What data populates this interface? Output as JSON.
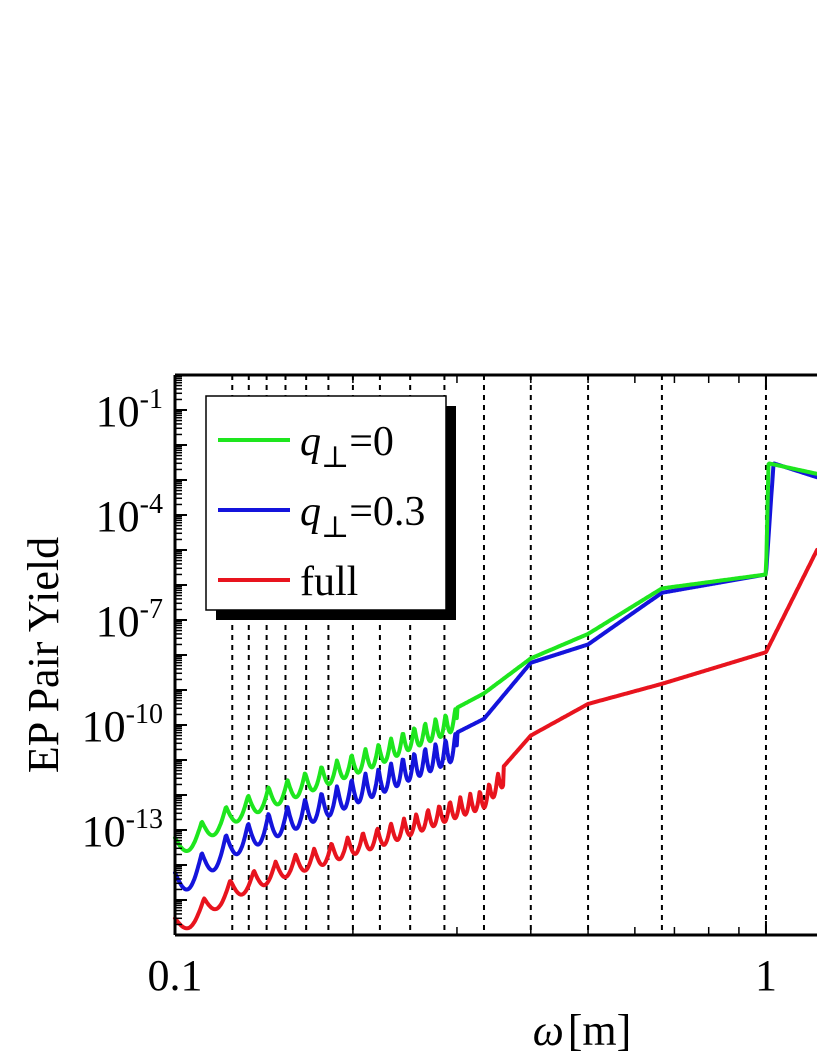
{
  "chart_data": {
    "type": "line",
    "title": "",
    "xlabel_symbol": "ω",
    "xlabel_unit": "[m]",
    "ylabel": "EP Pair Yield",
    "x_scale": "log",
    "y_scale": "log",
    "xlim": [
      0.1,
      1.22
    ],
    "ylim": [
      1e-16,
      1
    ],
    "x_ticks": [
      {
        "value": 0.1,
        "label": "0.1"
      },
      {
        "value": 1,
        "label": "1"
      }
    ],
    "y_ticks": [
      {
        "value": 0.1,
        "base": "10",
        "exp": "-1"
      },
      {
        "value": 0.0001,
        "base": "10",
        "exp": "-4"
      },
      {
        "value": 1e-07,
        "base": "10",
        "exp": "-7"
      },
      {
        "value": 1e-10,
        "base": "10",
        "exp": "-10"
      },
      {
        "value": 1e-13,
        "base": "10",
        "exp": "-13"
      }
    ],
    "threshold_lines": [
      0.125,
      0.1333,
      0.1429,
      0.1538,
      0.1667,
      0.1818,
      0.2,
      0.2222,
      0.25,
      0.2857,
      0.3333,
      0.4,
      0.5,
      0.6667,
      1.0
    ],
    "legend_position": "top-left",
    "series": [
      {
        "name": "full",
        "legend_var": "",
        "legend_sub": "",
        "legend_value": "full",
        "color": "#e8141e",
        "base_points": [
          [
            0.1,
            3e-16
          ],
          [
            0.125,
            4e-15
          ],
          [
            0.1333,
            6e-15
          ],
          [
            0.1429,
            1e-14
          ],
          [
            0.1538,
            1.6e-14
          ],
          [
            0.1667,
            2.5e-14
          ],
          [
            0.1818,
            4e-14
          ],
          [
            0.2,
            7e-14
          ],
          [
            0.2222,
            1.2e-13
          ],
          [
            0.25,
            2.5e-13
          ],
          [
            0.2857,
            6e-13
          ],
          [
            0.3333,
            1.5e-12
          ],
          [
            0.4,
            5e-11
          ],
          [
            0.5,
            4e-10
          ],
          [
            0.6667,
            1.5e-09
          ],
          [
            1.0,
            1.2e-08
          ],
          [
            1.22,
            1e-05
          ]
        ],
        "resonances": [
          {
            "at": 0.125,
            "dip": 0,
            "jump": 0
          },
          {
            "at": 0.1333,
            "dip": 0,
            "jump": 0
          },
          {
            "at": 0.1429,
            "dip": 0,
            "jump": 0
          },
          {
            "at": 0.1538,
            "dip": 0,
            "jump": 0
          },
          {
            "at": 0.1667,
            "dip": 0,
            "jump": 0
          },
          {
            "at": 0.1818,
            "dip": 0,
            "jump": 0
          },
          {
            "at": 0.2,
            "dip": 0,
            "jump": 0
          },
          {
            "at": 0.2222,
            "dip": 0,
            "jump": 0
          },
          {
            "at": 0.25,
            "dip": 0,
            "jump": 0
          },
          {
            "at": 0.2857,
            "dip": 0,
            "jump": 0
          },
          {
            "at": 0.3333,
            "dip": 0,
            "jump": 0
          },
          {
            "at": 0.4,
            "dip": 0,
            "jump": 0
          },
          {
            "at": 0.5,
            "dip": 0,
            "jump": 0
          },
          {
            "at": 0.6667,
            "dip": 0,
            "jump": 0
          },
          {
            "at": 1.0,
            "dip": 0,
            "jump": 0
          }
        ],
        "oscillation_start": 0.1,
        "oscillation_end": 0.36,
        "oscillation_period": 0.012,
        "oscillation_depth": 0.55
      },
      {
        "name": "q⊥=0.3",
        "legend_var": "q",
        "legend_sub": "⊥",
        "legend_value": "=0.3",
        "color": "#1414dc",
        "base_points": [
          [
            0.1,
            6e-15
          ],
          [
            0.125,
            1e-13
          ],
          [
            0.1333,
            1.6e-13
          ],
          [
            0.1429,
            2.8e-13
          ],
          [
            0.1538,
            4.5e-13
          ],
          [
            0.1667,
            8e-13
          ],
          [
            0.1818,
            1.4e-12
          ],
          [
            0.2,
            3e-12
          ],
          [
            0.2222,
            6e-12
          ],
          [
            0.25,
            1.5e-11
          ],
          [
            0.2857,
            4e-11
          ],
          [
            0.3333,
            1.5e-10
          ],
          [
            0.4,
            6e-09
          ],
          [
            0.5,
            2e-08
          ],
          [
            0.6667,
            6e-07
          ],
          [
            1.0,
            2e-06
          ],
          [
            1.03,
            0.003
          ],
          [
            1.22,
            0.0012
          ]
        ],
        "resonances": [
          {
            "at": 0.2,
            "dip": 0,
            "jump": 0
          },
          {
            "at": 0.2222,
            "dip": 0,
            "jump": 0
          },
          {
            "at": 0.25,
            "dip": 0,
            "jump": 0
          },
          {
            "at": 0.2857,
            "dip": 0,
            "jump": 0
          },
          {
            "at": 0.3333,
            "dip": 0,
            "jump": 0
          },
          {
            "at": 0.4,
            "dip": 0,
            "jump": 0
          },
          {
            "at": 0.5,
            "dip": 0,
            "jump": 0
          },
          {
            "at": 0.6667,
            "dip": 0,
            "jump": 0
          },
          {
            "at": 1.0,
            "dip": 0,
            "jump": 0
          }
        ],
        "oscillation_start": 0.1,
        "oscillation_end": 0.3,
        "oscillation_period": 0.011,
        "oscillation_depth": 0.75
      },
      {
        "name": "q⊥=0",
        "legend_var": "q",
        "legend_sub": "⊥",
        "legend_value": "=0",
        "color": "#1ee61e",
        "base_points": [
          [
            0.1,
            6e-14
          ],
          [
            0.125,
            6e-13
          ],
          [
            0.1333,
            1e-12
          ],
          [
            0.1429,
            1.6e-12
          ],
          [
            0.1538,
            2.6e-12
          ],
          [
            0.1667,
            4.5e-12
          ],
          [
            0.1818,
            8e-12
          ],
          [
            0.2,
            1.5e-11
          ],
          [
            0.2222,
            3e-11
          ],
          [
            0.25,
            8e-11
          ],
          [
            0.2857,
            2e-10
          ],
          [
            0.3333,
            8e-10
          ],
          [
            0.4,
            8e-09
          ],
          [
            0.5,
            4e-08
          ],
          [
            0.6667,
            8e-07
          ],
          [
            1.0,
            2e-06
          ],
          [
            1.01,
            0.003
          ],
          [
            1.22,
            0.0015
          ]
        ],
        "resonances": [
          {
            "at": 0.2,
            "dip": 0,
            "jump": 0
          },
          {
            "at": 0.2222,
            "dip": 0,
            "jump": 0
          },
          {
            "at": 0.25,
            "dip": 0,
            "jump": 0
          },
          {
            "at": 0.2857,
            "dip": 0,
            "jump": 0
          },
          {
            "at": 0.3333,
            "dip": 0,
            "jump": 0
          },
          {
            "at": 0.4,
            "dip": 0,
            "jump": 0
          },
          {
            "at": 0.5,
            "dip": 0,
            "jump": 0
          },
          {
            "at": 0.6667,
            "dip": 0,
            "jump": 0
          },
          {
            "at": 1.0,
            "dip": 0,
            "jump": 0
          }
        ],
        "oscillation_start": 0.1,
        "oscillation_end": 0.3,
        "oscillation_period": 0.011,
        "oscillation_depth": 0.6
      }
    ],
    "legend_order": [
      "q⊥=0",
      "q⊥=0.3",
      "full"
    ]
  }
}
